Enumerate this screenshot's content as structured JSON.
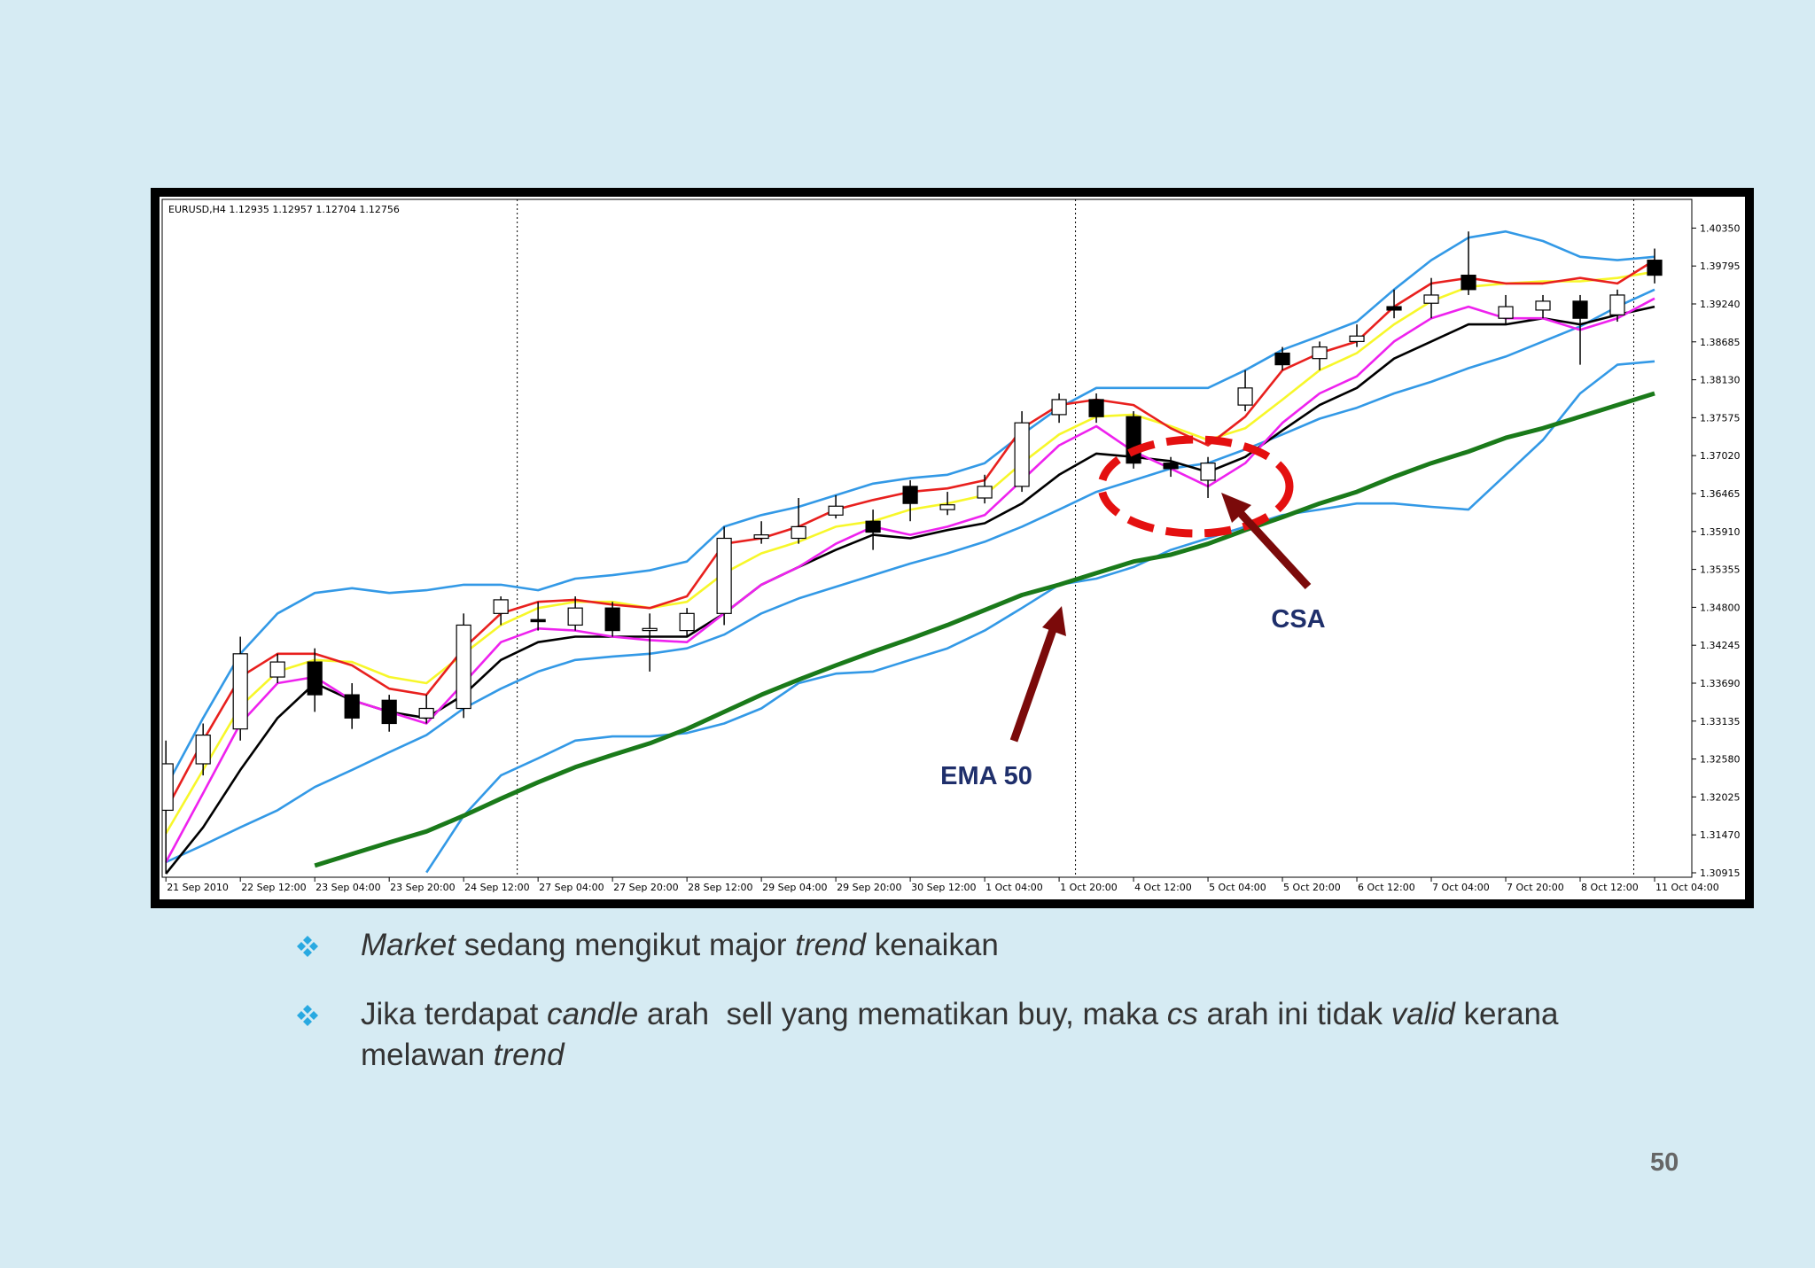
{
  "chart_data": {
    "type": "candlestick",
    "title": "EURUSD,H4  1.12935 1.12957 1.12704 1.12756",
    "up_color": "#ffffff",
    "down_color": "#000000",
    "open": [
      1.3183,
      1.3251,
      1.3302,
      1.3378,
      1.34,
      1.3352,
      1.3344,
      1.3318,
      1.3332,
      1.3471,
      1.3462,
      1.3454,
      1.3479,
      1.3446,
      1.3446,
      1.3471,
      1.3581,
      1.3581,
      1.3615,
      1.3606,
      1.3657,
      1.3623,
      1.364,
      1.3657,
      1.3762,
      1.3784,
      1.3759,
      1.3691,
      1.3666,
      1.3776,
      1.3852,
      1.3844,
      1.3869,
      1.392,
      1.3925,
      1.3966,
      1.3903,
      1.3915,
      1.3928,
      1.3908,
      1.3988
    ],
    "high": [
      1.3285,
      1.331,
      1.3437,
      1.3412,
      1.342,
      1.3369,
      1.3352,
      1.3352,
      1.3471,
      1.3496,
      1.3488,
      1.3496,
      1.3488,
      1.3471,
      1.3479,
      1.3598,
      1.3606,
      1.364,
      1.3644,
      1.3623,
      1.3666,
      1.3649,
      1.3674,
      1.3767,
      1.3793,
      1.3793,
      1.3767,
      1.37,
      1.37,
      1.3827,
      1.3861,
      1.3869,
      1.3894,
      1.3945,
      1.3962,
      1.403,
      1.3937,
      1.3937,
      1.3937,
      1.3945,
      1.4005
    ],
    "low": [
      1.309,
      1.3234,
      1.3285,
      1.3369,
      1.3327,
      1.3302,
      1.3298,
      1.331,
      1.3318,
      1.3454,
      1.3446,
      1.3446,
      1.3437,
      1.3386,
      1.3437,
      1.3454,
      1.3573,
      1.3573,
      1.361,
      1.3564,
      1.3606,
      1.3615,
      1.3632,
      1.3649,
      1.375,
      1.375,
      1.3683,
      1.3671,
      1.364,
      1.3767,
      1.3827,
      1.3827,
      1.3861,
      1.3903,
      1.3903,
      1.3937,
      1.3894,
      1.3903,
      1.3835,
      1.3898,
      1.3954
    ],
    "close": [
      1.3251,
      1.3293,
      1.3412,
      1.34,
      1.3352,
      1.3318,
      1.331,
      1.3332,
      1.3454,
      1.3491,
      1.3459,
      1.3479,
      1.3446,
      1.3449,
      1.3471,
      1.3581,
      1.3586,
      1.3598,
      1.3628,
      1.359,
      1.3632,
      1.363,
      1.3657,
      1.375,
      1.3784,
      1.3759,
      1.3691,
      1.3683,
      1.3691,
      1.3801,
      1.3835,
      1.3861,
      1.3877,
      1.3915,
      1.3937,
      1.3945,
      1.392,
      1.3928,
      1.3903,
      1.3937,
      1.3966
    ],
    "series": [
      {
        "color": "#3399e6",
        "values": [
          1.3217,
          1.3318,
          1.3412,
          1.3471,
          1.3501,
          1.3508,
          1.3501,
          1.3505,
          1.3513,
          1.3513,
          1.3505,
          1.3522,
          1.3527,
          1.3534,
          1.3547,
          1.3598,
          1.3615,
          1.3627,
          1.3644,
          1.3661,
          1.3669,
          1.3674,
          1.3691,
          1.3733,
          1.3772,
          1.3801,
          1.3801,
          1.3801,
          1.3801,
          1.3827,
          1.3857,
          1.3877,
          1.3898,
          1.3945,
          1.3988,
          1.4021,
          1.403,
          1.4016,
          1.3993,
          1.3988,
          1.3993
        ]
      },
      {
        "color": "#3399e6",
        "values": [
          1.3107,
          1.3132,
          1.3158,
          1.3183,
          1.3217,
          1.3242,
          1.3268,
          1.3293,
          1.3332,
          1.3361,
          1.3386,
          1.3403,
          1.3408,
          1.3412,
          1.342,
          1.344,
          1.3471,
          1.3493,
          1.351,
          1.3527,
          1.3544,
          1.3559,
          1.3576,
          1.3598,
          1.3623,
          1.3649,
          1.3666,
          1.3683,
          1.3691,
          1.3711,
          1.3733,
          1.3756,
          1.3772,
          1.3793,
          1.381,
          1.383,
          1.3847,
          1.3869,
          1.3891,
          1.392,
          1.3945
        ]
      },
      {
        "color": "#3399e6",
        "values": [
          null,
          null,
          null,
          null,
          null,
          null,
          null,
          1.3092,
          1.3175,
          1.3234,
          1.3259,
          1.3285,
          1.3291,
          1.3291,
          1.3296,
          1.331,
          1.3332,
          1.3369,
          1.3383,
          1.3386,
          1.3403,
          1.342,
          1.3446,
          1.3479,
          1.3513,
          1.3522,
          1.3539,
          1.3564,
          1.3581,
          1.3598,
          1.3615,
          1.3623,
          1.3632,
          1.3632,
          1.3627,
          1.3623,
          1.3674,
          1.3725,
          1.3793,
          1.3835,
          1.384
        ]
      },
      {
        "color": "#f7f72a",
        "values": [
          1.3149,
          1.3242,
          1.3335,
          1.3386,
          1.3403,
          1.34,
          1.3378,
          1.3369,
          1.3412,
          1.3454,
          1.3479,
          1.3488,
          1.3488,
          1.3479,
          1.3488,
          1.353,
          1.3559,
          1.3576,
          1.3598,
          1.3606,
          1.3623,
          1.3632,
          1.3644,
          1.3691,
          1.3733,
          1.3759,
          1.3762,
          1.3745,
          1.3725,
          1.3742,
          1.3784,
          1.3827,
          1.3852,
          1.3894,
          1.3928,
          1.3949,
          1.3954,
          1.3957,
          1.3957,
          1.3962,
          1.3971
        ]
      },
      {
        "color": "#000000",
        "values": [
          1.309,
          1.3158,
          1.3242,
          1.3318,
          1.3369,
          1.3344,
          1.3327,
          1.3318,
          1.3352,
          1.3403,
          1.3429,
          1.3437,
          1.3437,
          1.3437,
          1.3437,
          1.3471,
          1.3513,
          1.3539,
          1.3564,
          1.3586,
          1.3581,
          1.3593,
          1.3603,
          1.3632,
          1.3674,
          1.3705,
          1.37,
          1.3694,
          1.3678,
          1.37,
          1.3739,
          1.3776,
          1.3801,
          1.3844,
          1.3869,
          1.3894,
          1.3894,
          1.3903,
          1.3894,
          1.3908,
          1.392
        ]
      },
      {
        "color": "#ee22ee",
        "values": [
          1.3107,
          1.3208,
          1.331,
          1.3369,
          1.3378,
          1.3344,
          1.3327,
          1.331,
          1.3369,
          1.3429,
          1.3449,
          1.3446,
          1.3437,
          1.3432,
          1.3429,
          1.3471,
          1.3513,
          1.3539,
          1.3573,
          1.3598,
          1.3586,
          1.3598,
          1.3615,
          1.3666,
          1.3717,
          1.3745,
          1.3708,
          1.3683,
          1.3657,
          1.3691,
          1.375,
          1.3793,
          1.3818,
          1.3869,
          1.3903,
          1.392,
          1.3903,
          1.3903,
          1.3886,
          1.3903,
          1.3932
        ]
      },
      {
        "color": "#e8201e",
        "values": [
          1.3183,
          1.3285,
          1.3378,
          1.3412,
          1.3412,
          1.3395,
          1.3361,
          1.3352,
          1.342,
          1.3471,
          1.3488,
          1.3491,
          1.3484,
          1.3479,
          1.3496,
          1.3573,
          1.3581,
          1.3598,
          1.3623,
          1.3637,
          1.3649,
          1.3654,
          1.3666,
          1.3742,
          1.3776,
          1.3784,
          1.3776,
          1.3742,
          1.3717,
          1.3759,
          1.3827,
          1.3852,
          1.3869,
          1.392,
          1.3954,
          1.3962,
          1.3954,
          1.3954,
          1.3962,
          1.3954,
          1.3988
        ]
      },
      {
        "color": "#1a7a1a",
        "values": [
          null,
          null,
          null,
          null,
          1.3102,
          1.3119,
          1.3136,
          1.3152,
          1.3175,
          1.32,
          1.3224,
          1.3246,
          1.3264,
          1.3281,
          1.3302,
          1.3327,
          1.3352,
          1.3374,
          1.3395,
          1.3415,
          1.3434,
          1.3454,
          1.3476,
          1.3498,
          1.3513,
          1.353,
          1.3547,
          1.3557,
          1.3573,
          1.3593,
          1.3612,
          1.3632,
          1.3649,
          1.3671,
          1.3691,
          1.3708,
          1.3728,
          1.3742,
          1.3759,
          1.3776,
          1.3793
        ]
      }
    ],
    "xlim": [
      -0.1,
      41
    ],
    "xticks": [
      {
        "value": 0,
        "label": "21 Sep 2010"
      },
      {
        "value": 2,
        "label": "22 Sep 12:00"
      },
      {
        "value": 4,
        "label": "23 Sep 04:00"
      },
      {
        "value": 6,
        "label": "23 Sep 20:00"
      },
      {
        "value": 8,
        "label": "24 Sep 12:00"
      },
      {
        "value": 10,
        "label": "27 Sep 04:00"
      },
      {
        "value": 12,
        "label": "27 Sep 20:00"
      },
      {
        "value": 14,
        "label": "28 Sep 12:00"
      },
      {
        "value": 16,
        "label": "29 Sep 04:00"
      },
      {
        "value": 18,
        "label": "29 Sep 20:00"
      },
      {
        "value": 20,
        "label": "30 Sep 12:00"
      },
      {
        "value": 22,
        "label": "1 Oct 04:00"
      },
      {
        "value": 24,
        "label": "1 Oct 20:00"
      },
      {
        "value": 26,
        "label": "4 Oct 12:00"
      },
      {
        "value": 28,
        "label": "5 Oct 04:00"
      },
      {
        "value": 30,
        "label": "5 Oct 20:00"
      },
      {
        "value": 32,
        "label": "6 Oct 12:00"
      },
      {
        "value": 34,
        "label": "7 Oct 04:00"
      },
      {
        "value": 36,
        "label": "7 Oct 20:00"
      },
      {
        "value": 38,
        "label": "8 Oct 12:00"
      },
      {
        "value": 40,
        "label": "11 Oct 04:00"
      }
    ],
    "ylim": [
      1.3085,
      1.4077
    ],
    "yticks": [
      {
        "value": 1.4035,
        "label": "1.40350"
      },
      {
        "value": 1.39795,
        "label": "1.39795"
      },
      {
        "value": 1.3924,
        "label": "1.39240"
      },
      {
        "value": 1.38685,
        "label": "1.38685"
      },
      {
        "value": 1.3813,
        "label": "1.38130"
      },
      {
        "value": 1.37575,
        "label": "1.37575"
      },
      {
        "value": 1.3702,
        "label": "1.37020"
      },
      {
        "value": 1.36465,
        "label": "1.36465"
      },
      {
        "value": 1.3591,
        "label": "1.35910"
      },
      {
        "value": 1.35355,
        "label": "1.35355"
      },
      {
        "value": 1.348,
        "label": "1.34800"
      },
      {
        "value": 1.34245,
        "label": "1.34245"
      },
      {
        "value": 1.3369,
        "label": "1.33690"
      },
      {
        "value": 1.33135,
        "label": "1.33135"
      },
      {
        "value": 1.3258,
        "label": "1.32580"
      },
      {
        "value": 1.32025,
        "label": "1.32025"
      },
      {
        "value": 1.3147,
        "label": "1.31470"
      },
      {
        "value": 1.30915,
        "label": "1.30915"
      }
    ],
    "annotations": [
      "CSA",
      "EMA 50"
    ]
  },
  "slide": {
    "bullets": [
      [
        "Market",
        " sedang mengikut major ",
        "trend",
        " kenaikan"
      ],
      [
        "Jika terdapat ",
        "candle",
        " arah  sell yang mematikan buy, maka ",
        "cs",
        " arah ini tidak ",
        "valid",
        " kerana melawan ",
        "trend"
      ]
    ],
    "page_number": "50"
  }
}
